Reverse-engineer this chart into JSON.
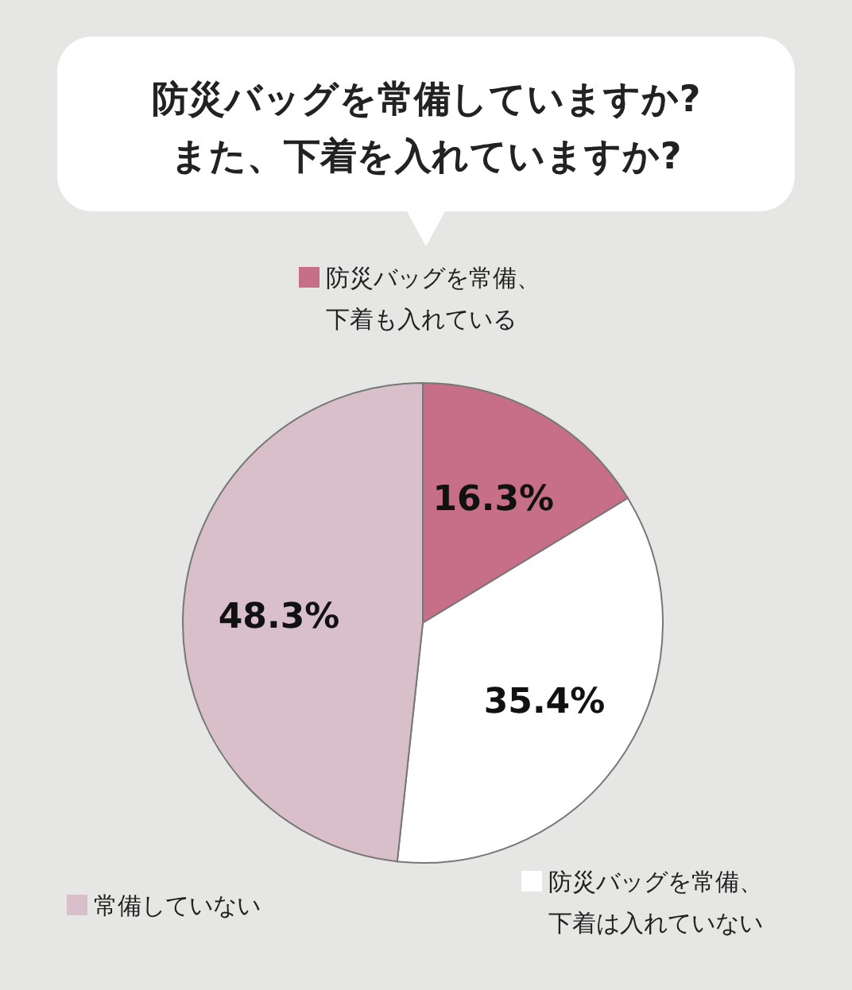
{
  "chart_data": {
    "type": "pie",
    "title": "防災バッグを常備していますか?\nまた、下着を入れていますか?",
    "categories": [
      "防災バッグを常備、下着も入れている",
      "防災バッグを常備、下着は入れていない",
      "常備していない"
    ],
    "legend": "top left",
    "values": [
      16.3,
      35.4,
      48.3
    ],
    "colors": [
      "#c76f88",
      "#ffffff",
      "#d8bfca"
    ],
    "value_labels": [
      "16.3%",
      "35.4%",
      "48.3%"
    ]
  }
}
